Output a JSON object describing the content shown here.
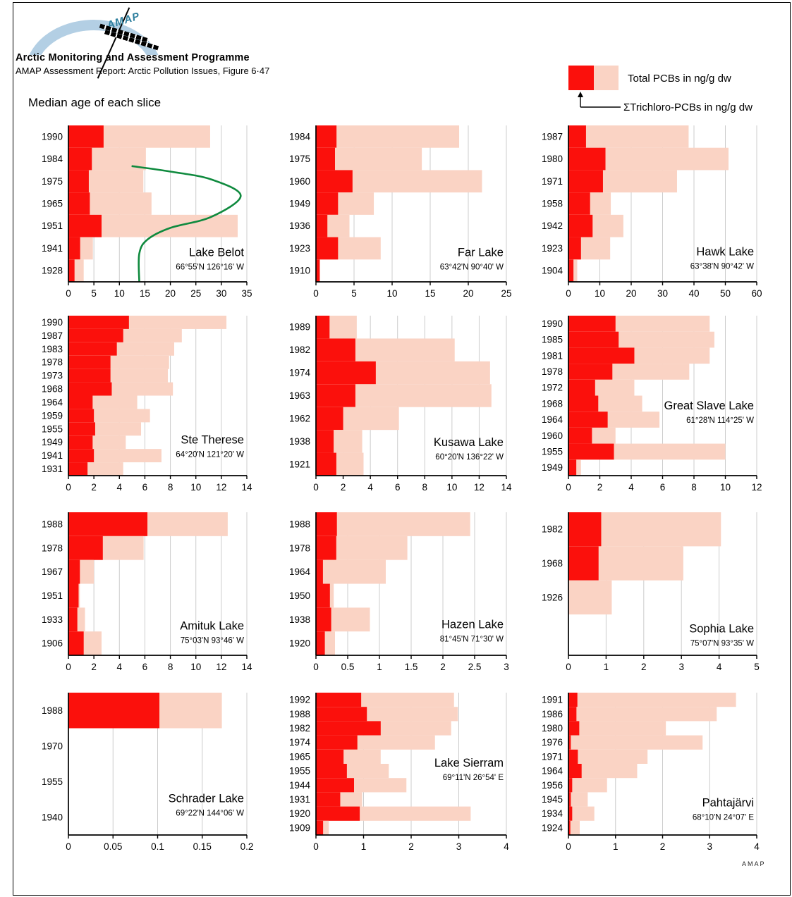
{
  "header": {
    "org": "Arctic Monitoring and Assessment Programme",
    "report": "AMAP Assessment Report: Arctic Pollution Issues, Figure 6·47",
    "heading": "Median age of each slice",
    "logo_text": "AMAP"
  },
  "legend": {
    "total_label": "Total PCBs in ng/g dw",
    "trichloro_label": "ΣTrichloro-PCBs in ng/g dw"
  },
  "footer": {
    "brand": "AMAP"
  },
  "colors": {
    "total_pcb_pink": "#fad3c4",
    "trichloro_red": "#fb100c",
    "curve_green": "#0f8a3e",
    "grid": "#cccccc",
    "axis": "#000000",
    "logo_blue": "#b3cfe4",
    "logo_teal": "#2e7f9e"
  },
  "chart_data": [
    {
      "type": "bar",
      "orientation": "horizontal",
      "title": "Lake Belot",
      "subtitle": "66°55'N 126°16' W",
      "categories": [
        "1990",
        "1984",
        "1975",
        "1965",
        "1951",
        "1941",
        "1928"
      ],
      "series": [
        {
          "name": "Total PCBs in ng/g dw",
          "values": [
            27.8,
            15.2,
            14.7,
            16.3,
            33.2,
            4.8,
            3.0
          ]
        },
        {
          "name": "ΣTrichloro-PCBs in ng/g dw",
          "values": [
            6.9,
            4.6,
            4.0,
            4.2,
            6.5,
            2.3,
            1.2
          ]
        }
      ],
      "xlim": [
        0,
        35
      ],
      "xticks": [
        0,
        5,
        10,
        15,
        20,
        25,
        30,
        35
      ],
      "curve_points": [
        [
          12.4,
          0.26
        ],
        [
          20,
          0.295
        ],
        [
          28,
          0.345
        ],
        [
          33.8,
          0.45
        ],
        [
          28,
          0.585
        ],
        [
          20,
          0.655
        ],
        [
          15.5,
          0.73
        ],
        [
          13.9,
          0.82
        ],
        [
          13.9,
          1.0
        ]
      ]
    },
    {
      "type": "bar",
      "orientation": "horizontal",
      "title": "Far Lake",
      "subtitle": "63°42'N 90°40' W",
      "categories": [
        "1984",
        "1975",
        "1960",
        "1949",
        "1936",
        "1923",
        "1910"
      ],
      "series": [
        {
          "name": "Total PCBs in ng/g dw",
          "values": [
            18.8,
            13.9,
            21.8,
            7.6,
            4.4,
            8.5,
            0.5
          ]
        },
        {
          "name": "ΣTrichloro-PCBs in ng/g dw",
          "values": [
            2.7,
            2.5,
            4.8,
            2.9,
            1.5,
            2.9,
            0.5
          ]
        }
      ],
      "xlim": [
        0,
        25
      ],
      "xticks": [
        0,
        5,
        10,
        15,
        20,
        25
      ]
    },
    {
      "type": "bar",
      "orientation": "horizontal",
      "title": "Hawk Lake",
      "subtitle": "63°38'N 90°42' W",
      "categories": [
        "1987",
        "1980",
        "1971",
        "1958",
        "1942",
        "1923",
        "1904"
      ],
      "series": [
        {
          "name": "Total PCBs in ng/g dw",
          "values": [
            38.3,
            51.0,
            34.6,
            13.5,
            17.5,
            13.3,
            2.8
          ]
        },
        {
          "name": "ΣTrichloro-PCBs in ng/g dw",
          "values": [
            5.6,
            11.8,
            11.0,
            6.9,
            7.7,
            4.0,
            1.6
          ]
        }
      ],
      "xlim": [
        0,
        60
      ],
      "xticks": [
        0,
        10,
        20,
        30,
        40,
        50,
        60
      ]
    },
    {
      "type": "bar",
      "orientation": "horizontal",
      "title": "Ste Therese",
      "subtitle": "64°20'N 121°20' W",
      "categories": [
        "1990",
        "1987",
        "1983",
        "1978",
        "1973",
        "1968",
        "1964",
        "1959",
        "1955",
        "1949",
        "1941",
        "1931"
      ],
      "series": [
        {
          "name": "Total PCBs in ng/g dw",
          "values": [
            12.4,
            8.9,
            8.3,
            7.9,
            7.8,
            8.2,
            5.4,
            6.4,
            5.7,
            4.5,
            7.3,
            4.3
          ]
        },
        {
          "name": "ΣTrichloro-PCBs in ng/g dw",
          "values": [
            4.75,
            4.3,
            3.8,
            3.3,
            3.3,
            3.4,
            1.9,
            2.0,
            2.1,
            1.9,
            2.0,
            1.5
          ]
        }
      ],
      "xlim": [
        0,
        14
      ],
      "xticks": [
        0,
        2,
        4,
        6,
        8,
        10,
        12,
        14
      ]
    },
    {
      "type": "bar",
      "orientation": "horizontal",
      "title": "Kusawa Lake",
      "subtitle": "60°20'N 136°22' W",
      "categories": [
        "1989",
        "1982",
        "1974",
        "1963",
        "1962",
        "1938",
        "1921"
      ],
      "series": [
        {
          "name": "Total PCBs in ng/g dw",
          "values": [
            3.0,
            10.2,
            12.8,
            12.9,
            6.1,
            3.4,
            3.5
          ]
        },
        {
          "name": "ΣTrichloro-PCBs in ng/g dw",
          "values": [
            1.0,
            2.9,
            4.4,
            2.9,
            2.0,
            1.3,
            1.5
          ]
        }
      ],
      "xlim": [
        0,
        14
      ],
      "xticks": [
        0,
        2,
        4,
        6,
        8,
        10,
        12,
        14
      ]
    },
    {
      "type": "bar",
      "orientation": "horizontal",
      "title": "Great Slave Lake",
      "subtitle": "61°28'N 114°25' W",
      "categories": [
        "1990",
        "1985",
        "1981",
        "1978",
        "1972",
        "1968",
        "1964",
        "1960",
        "1955",
        "1949"
      ],
      "series": [
        {
          "name": "Total PCBs in ng/g dw",
          "values": [
            9.0,
            9.3,
            9.0,
            7.7,
            4.2,
            4.7,
            5.8,
            3.0,
            10.0,
            0.8
          ]
        },
        {
          "name": "ΣTrichloro-PCBs in ng/g dw",
          "values": [
            3.0,
            3.2,
            4.2,
            2.8,
            1.7,
            1.9,
            2.5,
            1.5,
            2.9,
            0.5
          ]
        }
      ],
      "xlim": [
        0,
        12
      ],
      "xticks": [
        0,
        2,
        4,
        6,
        8,
        10,
        12
      ]
    },
    {
      "type": "bar",
      "orientation": "horizontal",
      "title": "Amituk Lake",
      "subtitle": "75°03'N 93°46' W",
      "categories": [
        "1988",
        "1978",
        "1967",
        "1951",
        "1933",
        "1906"
      ],
      "series": [
        {
          "name": "Total PCBs in ng/g dw",
          "values": [
            12.5,
            5.9,
            2.0,
            0.9,
            1.3,
            2.6
          ]
        },
        {
          "name": "ΣTrichloro-PCBs in ng/g dw",
          "values": [
            6.2,
            2.7,
            0.9,
            0.8,
            0.7,
            1.2
          ]
        }
      ],
      "xlim": [
        0,
        14
      ],
      "xticks": [
        0,
        2,
        4,
        6,
        8,
        10,
        12,
        14
      ]
    },
    {
      "type": "bar",
      "orientation": "horizontal",
      "title": "Hazen Lake",
      "subtitle": "81°45'N 71°30' W",
      "categories": [
        "1988",
        "1978",
        "1964",
        "1950",
        "1938",
        "1920"
      ],
      "series": [
        {
          "name": "Total PCBs in ng/g dw",
          "values": [
            2.43,
            1.44,
            1.1,
            0.28,
            0.85,
            0.3
          ]
        },
        {
          "name": "ΣTrichloro-PCBs in ng/g dw",
          "values": [
            0.33,
            0.32,
            0.11,
            0.22,
            0.24,
            0.14
          ]
        }
      ],
      "xlim": [
        0,
        3
      ],
      "xticks": [
        0,
        0.5,
        1,
        1.5,
        2,
        2.5,
        3
      ]
    },
    {
      "type": "bar",
      "orientation": "horizontal",
      "title": "Sophia Lake",
      "subtitle": "75°07'N 93°35' W",
      "categories": [
        "1982",
        "1968",
        "1926"
      ],
      "series": [
        {
          "name": "Total PCBs in ng/g dw",
          "values": [
            4.05,
            3.05,
            1.15
          ]
        },
        {
          "name": "ΣTrichloro-PCBs in ng/g dw",
          "values": [
            0.87,
            0.8,
            0
          ]
        }
      ],
      "xlim": [
        0,
        5
      ],
      "xticks": [
        0,
        1,
        2,
        3,
        4,
        5
      ]
    },
    {
      "type": "bar",
      "orientation": "horizontal",
      "title": "Schrader Lake",
      "subtitle": "69°22'N 144°06' W",
      "categories": [
        "1988",
        "1970",
        "1955",
        "1940"
      ],
      "series": [
        {
          "name": "Total PCBs in ng/g dw",
          "values": [
            0.172,
            0,
            0,
            0
          ]
        },
        {
          "name": "ΣTrichloro-PCBs in ng/g dw",
          "values": [
            0.102,
            0,
            0,
            0
          ]
        }
      ],
      "xlim": [
        0,
        0.2
      ],
      "xticks": [
        0,
        0.05,
        0.1,
        0.15,
        0.2
      ]
    },
    {
      "type": "bar",
      "orientation": "horizontal",
      "title": "Lake Sierram",
      "subtitle": "69°11'N 26°54' E",
      "categories": [
        "1992",
        "1988",
        "1982",
        "1974",
        "1965",
        "1955",
        "1944",
        "1931",
        "1920",
        "1909"
      ],
      "series": [
        {
          "name": "Total PCBs in ng/g dw",
          "values": [
            2.9,
            2.98,
            2.84,
            2.5,
            1.36,
            1.53,
            1.9,
            0.97,
            3.25,
            0.27
          ]
        },
        {
          "name": "ΣTrichloro-PCBs in ng/g dw",
          "values": [
            0.95,
            1.07,
            1.36,
            0.87,
            0.58,
            0.65,
            0.8,
            0.51,
            0.92,
            0.15
          ]
        }
      ],
      "xlim": [
        0,
        4
      ],
      "xticks": [
        0,
        1,
        2,
        3,
        4
      ]
    },
    {
      "type": "bar",
      "orientation": "horizontal",
      "title": "Pahtajärvi",
      "subtitle": "68°10'N 24°07' E",
      "categories": [
        "1991",
        "1986",
        "1980",
        "1976",
        "1971",
        "1964",
        "1956",
        "1945",
        "1934",
        "1924"
      ],
      "series": [
        {
          "name": "Total PCBs in ng/g dw",
          "values": [
            3.56,
            3.15,
            2.07,
            2.85,
            1.68,
            1.46,
            0.82,
            0.41,
            0.55,
            0.24
          ]
        },
        {
          "name": "ΣTrichloro-PCBs in ng/g dw",
          "values": [
            0.19,
            0.17,
            0.23,
            0.05,
            0.2,
            0.28,
            0.08,
            0.05,
            0.08,
            0.04
          ]
        }
      ],
      "xlim": [
        0,
        4
      ],
      "xticks": [
        0,
        1,
        2,
        3,
        4
      ]
    }
  ]
}
